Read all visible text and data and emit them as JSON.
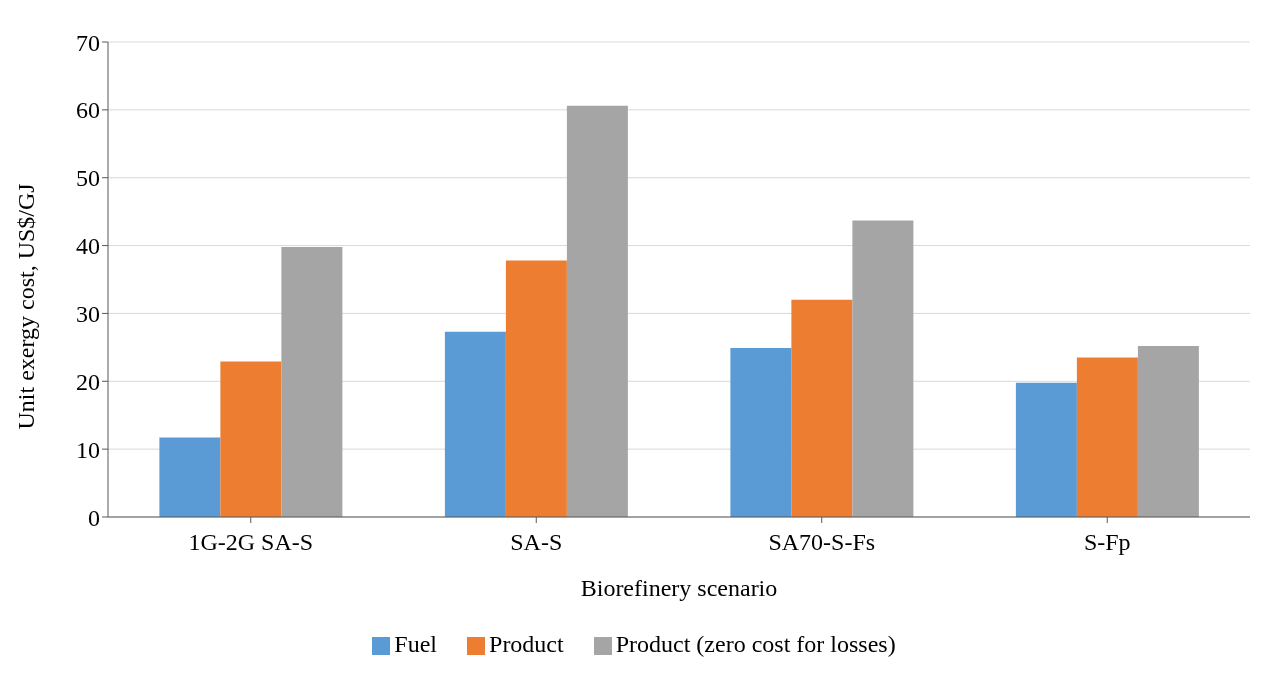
{
  "chart_data": {
    "type": "bar",
    "xlabel": "Biorefinery scenario",
    "ylabel": "Unit exergy cost, US$/GJ",
    "categories": [
      "1G-2G SA-S",
      "SA-S",
      "SA70-S-Fs",
      "S-Fp"
    ],
    "series": [
      {
        "name": "Fuel",
        "color": "#5b9bd5",
        "values": [
          11.7,
          27.3,
          24.9,
          19.8
        ]
      },
      {
        "name": "Product",
        "color": "#ed7d31",
        "values": [
          22.9,
          37.8,
          32.0,
          23.5
        ]
      },
      {
        "name": "Product (zero cost for losses)",
        "color": "#a5a5a5",
        "values": [
          39.8,
          60.6,
          43.7,
          25.2
        ]
      }
    ],
    "ylim": [
      0,
      70
    ],
    "yticks": [
      0,
      10,
      20,
      30,
      40,
      50,
      60,
      70
    ],
    "grid": "y",
    "legend": "bottom"
  }
}
